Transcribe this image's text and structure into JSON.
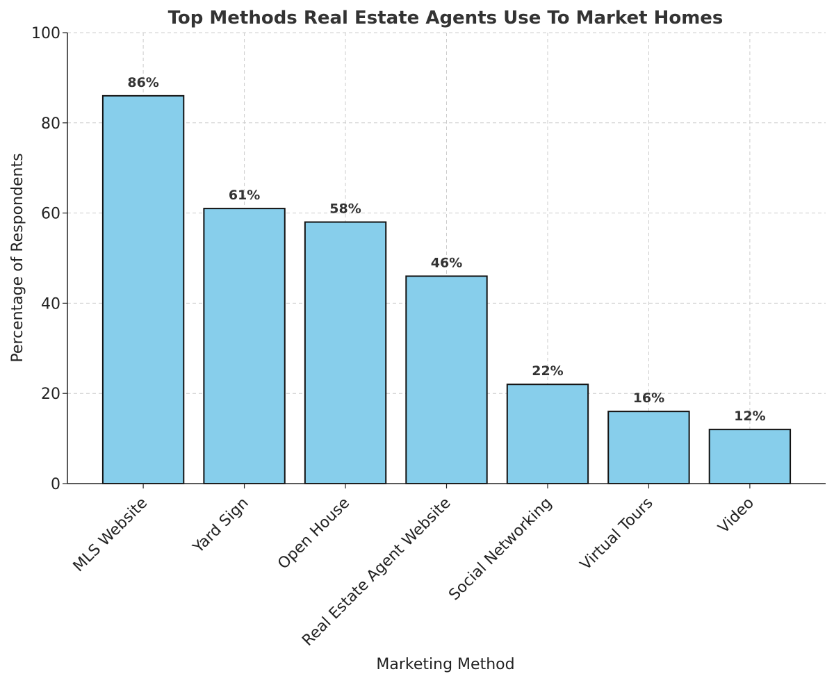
{
  "chart_data": {
    "type": "bar",
    "title": "Top Methods Real Estate Agents Use To Market Homes",
    "xlabel": "Marketing Method",
    "ylabel": "Percentage of Respondents",
    "categories": [
      "MLS Website",
      "Yard Sign",
      "Open House",
      "Real Estate Agent Website",
      "Social Networking",
      "Virtual Tours",
      "Video"
    ],
    "values": [
      86,
      61,
      58,
      46,
      22,
      16,
      12
    ],
    "data_labels": [
      "86%",
      "61%",
      "58%",
      "46%",
      "22%",
      "16%",
      "12%"
    ],
    "ylim": [
      0,
      100
    ],
    "yticks": [
      "0",
      "20",
      "40",
      "60",
      "80",
      "100"
    ],
    "grid": true,
    "bar_color": "#87CEEB",
    "bar_edge_color": "#111111"
  }
}
